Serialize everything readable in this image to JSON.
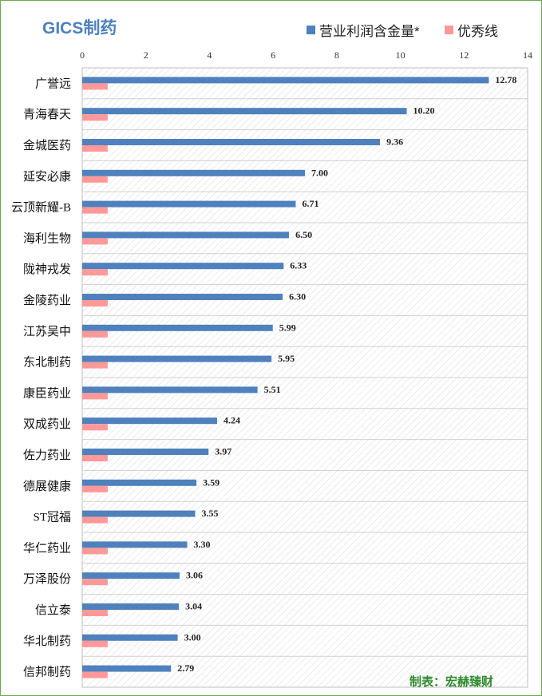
{
  "chart_data": {
    "type": "bar",
    "orientation": "horizontal",
    "title": "GICS制药",
    "categories": [
      "广誉远",
      "青海春天",
      "金城医药",
      "延安必康",
      "云顶新耀-B",
      "海利生物",
      "陇神戎发",
      "金陵药业",
      "江苏吴中",
      "东北制药",
      "康臣药业",
      "双成药业",
      "佐力药业",
      "德展健康",
      "ST冠福",
      "华仁药业",
      "万泽股份",
      "信立泰",
      "华北制药",
      "信邦制药"
    ],
    "series": [
      {
        "name": "营业利润含金量*",
        "color": "#4f81bd",
        "values": [
          12.78,
          10.2,
          9.36,
          7.0,
          6.71,
          6.5,
          6.33,
          6.3,
          5.99,
          5.95,
          5.51,
          4.24,
          3.97,
          3.59,
          3.55,
          3.3,
          3.06,
          3.04,
          3.0,
          2.79
        ],
        "labels": [
          "12.78",
          "10.20",
          "9.36",
          "7.00",
          "6.71",
          "6.50",
          "6.33",
          "6.30",
          "5.99",
          "5.95",
          "5.51",
          "4.24",
          "3.97",
          "3.59",
          "3.55",
          "3.30",
          "3.06",
          "3.04",
          "3.00",
          "2.79"
        ]
      },
      {
        "name": "优秀线",
        "color": "#ff9999",
        "values": [
          0.8,
          0.8,
          0.8,
          0.8,
          0.8,
          0.8,
          0.8,
          0.8,
          0.8,
          0.8,
          0.8,
          0.8,
          0.8,
          0.8,
          0.8,
          0.8,
          0.8,
          0.8,
          0.8,
          0.8
        ]
      }
    ],
    "xlim": [
      0,
      14
    ],
    "xticks": [
      "0",
      "2",
      "4",
      "6",
      "8",
      "10",
      "12",
      "14"
    ],
    "xaxis_position": "top",
    "legend": "top-right",
    "grid": true,
    "background_pattern": "diagonal-hatch"
  },
  "credit": "制表：宏赫臻财"
}
